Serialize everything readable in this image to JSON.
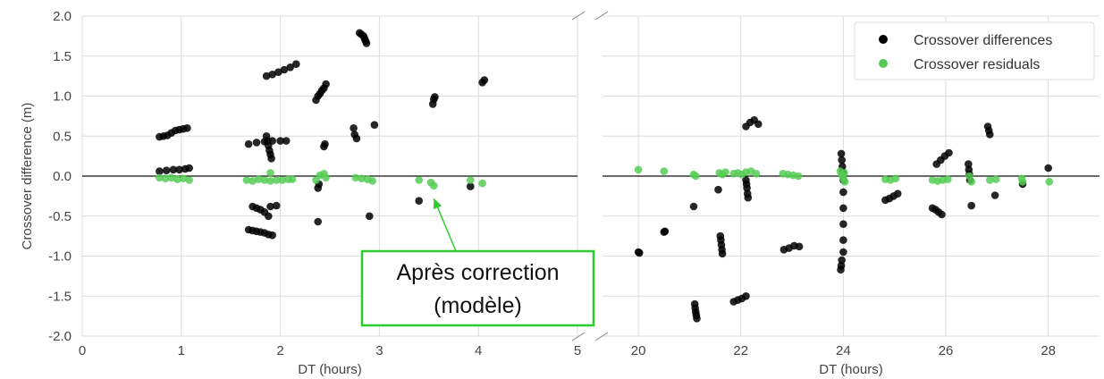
{
  "chart_data": [
    {
      "type": "scatter",
      "panel": "left",
      "xlabel": "DT (hours)",
      "ylabel": "Crossover difference (m)",
      "xlim": [
        0,
        5
      ],
      "ylim": [
        -2.0,
        2.0
      ],
      "xticks": [
        0,
        1,
        2,
        3,
        4,
        5
      ],
      "yticks": [
        "-2.0",
        "-1.5",
        "-1.0",
        "-0.5",
        "0.0",
        "0.5",
        "1.0",
        "1.5",
        "2.0"
      ],
      "grid": true,
      "zero_line": 0,
      "series": [
        {
          "name": "Crossover differences",
          "color": "#000000",
          "points": [
            [
              0.78,
              0.49
            ],
            [
              0.82,
              0.5
            ],
            [
              0.86,
              0.51
            ],
            [
              0.9,
              0.54
            ],
            [
              0.94,
              0.57
            ],
            [
              0.98,
              0.58
            ],
            [
              1.02,
              0.59
            ],
            [
              1.06,
              0.6
            ],
            [
              0.78,
              0.06
            ],
            [
              0.85,
              0.07
            ],
            [
              0.92,
              0.08
            ],
            [
              0.98,
              0.08
            ],
            [
              1.04,
              0.09
            ],
            [
              1.08,
              0.1
            ],
            [
              1.68,
              -0.67
            ],
            [
              1.72,
              -0.68
            ],
            [
              1.76,
              -0.69
            ],
            [
              1.8,
              -0.7
            ],
            [
              1.84,
              -0.71
            ],
            [
              1.88,
              -0.73
            ],
            [
              1.92,
              -0.74
            ],
            [
              1.72,
              -0.38
            ],
            [
              1.76,
              -0.4
            ],
            [
              1.8,
              -0.42
            ],
            [
              1.84,
              -0.45
            ],
            [
              1.88,
              -0.5
            ],
            [
              1.9,
              -0.38
            ],
            [
              1.96,
              -0.37
            ],
            [
              1.68,
              0.4
            ],
            [
              1.76,
              0.42
            ],
            [
              1.84,
              0.43
            ],
            [
              1.92,
              0.44
            ],
            [
              2.0,
              0.44
            ],
            [
              2.06,
              0.44
            ],
            [
              1.86,
              0.5
            ],
            [
              1.87,
              0.44
            ],
            [
              1.88,
              0.38
            ],
            [
              1.89,
              0.32
            ],
            [
              1.9,
              0.27
            ],
            [
              1.91,
              0.22
            ],
            [
              1.86,
              1.25
            ],
            [
              1.92,
              1.27
            ],
            [
              1.98,
              1.3
            ],
            [
              2.04,
              1.33
            ],
            [
              2.1,
              1.36
            ],
            [
              2.16,
              1.4
            ],
            [
              2.38,
              -0.15
            ],
            [
              2.39,
              -0.1
            ],
            [
              2.38,
              -0.57
            ],
            [
              2.36,
              0.95
            ],
            [
              2.38,
              1.0
            ],
            [
              2.4,
              1.03
            ],
            [
              2.42,
              1.07
            ],
            [
              2.44,
              1.1
            ],
            [
              2.46,
              1.15
            ],
            [
              2.44,
              0.37
            ],
            [
              2.45,
              0.4
            ],
            [
              2.74,
              0.6
            ],
            [
              2.75,
              0.52
            ],
            [
              2.77,
              0.47
            ],
            [
              2.8,
              1.79
            ],
            [
              2.82,
              1.77
            ],
            [
              2.84,
              1.75
            ],
            [
              2.85,
              1.72
            ],
            [
              2.86,
              1.69
            ],
            [
              2.87,
              1.66
            ],
            [
              2.9,
              -0.5
            ],
            [
              2.95,
              0.64
            ],
            [
              3.4,
              -0.31
            ],
            [
              3.54,
              0.9
            ],
            [
              3.55,
              0.96
            ],
            [
              3.56,
              0.99
            ],
            [
              3.92,
              -0.13
            ],
            [
              4.04,
              1.17
            ],
            [
              4.06,
              1.2
            ]
          ]
        },
        {
          "name": "Crossover residuals",
          "color": "#55cc55",
          "points": [
            [
              0.78,
              -0.02
            ],
            [
              0.84,
              -0.03
            ],
            [
              0.9,
              -0.02
            ],
            [
              0.96,
              -0.04
            ],
            [
              1.02,
              -0.03
            ],
            [
              1.08,
              -0.05
            ],
            [
              1.66,
              -0.05
            ],
            [
              1.72,
              -0.06
            ],
            [
              1.78,
              -0.04
            ],
            [
              1.84,
              -0.05
            ],
            [
              1.9,
              -0.06
            ],
            [
              1.96,
              -0.05
            ],
            [
              2.02,
              -0.05
            ],
            [
              2.08,
              -0.04
            ],
            [
              2.12,
              -0.04
            ],
            [
              1.9,
              0.04
            ],
            [
              2.36,
              -0.05
            ],
            [
              2.4,
              0.01
            ],
            [
              2.44,
              0.03
            ],
            [
              2.46,
              -0.02
            ],
            [
              2.76,
              -0.02
            ],
            [
              2.82,
              -0.03
            ],
            [
              2.88,
              -0.04
            ],
            [
              2.93,
              -0.06
            ],
            [
              3.4,
              -0.05
            ],
            [
              3.52,
              -0.08
            ],
            [
              3.55,
              -0.12
            ],
            [
              3.92,
              -0.05
            ],
            [
              4.04,
              -0.09
            ]
          ]
        }
      ]
    },
    {
      "type": "scatter",
      "panel": "right",
      "xlabel": "DT (hours)",
      "xlim": [
        19.3,
        29.0
      ],
      "ylim": [
        -2.0,
        2.0
      ],
      "xticks": [
        20,
        22,
        24,
        26,
        28
      ],
      "grid": true,
      "zero_line": 0,
      "legend": {
        "position": "top-right",
        "entries": [
          "Crossover differences",
          "Crossover residuals"
        ]
      },
      "series": [
        {
          "name": "Crossover differences",
          "color": "#000000",
          "points": [
            [
              20.0,
              -0.95
            ],
            [
              20.02,
              -0.96
            ],
            [
              20.5,
              -0.7
            ],
            [
              20.52,
              -0.69
            ],
            [
              21.08,
              -0.38
            ],
            [
              21.1,
              -1.6
            ],
            [
              21.11,
              -1.65
            ],
            [
              21.12,
              -1.7
            ],
            [
              21.13,
              -1.74
            ],
            [
              21.14,
              -1.78
            ],
            [
              21.56,
              -0.17
            ],
            [
              21.6,
              -0.75
            ],
            [
              21.61,
              -0.8
            ],
            [
              21.62,
              -0.86
            ],
            [
              21.63,
              -0.92
            ],
            [
              21.64,
              -0.97
            ],
            [
              21.86,
              -1.57
            ],
            [
              21.94,
              -1.55
            ],
            [
              22.02,
              -1.53
            ],
            [
              22.1,
              -1.5
            ],
            [
              22.1,
              0.62
            ],
            [
              22.18,
              0.67
            ],
            [
              22.26,
              0.7
            ],
            [
              22.34,
              0.65
            ],
            [
              22.1,
              -0.05
            ],
            [
              22.11,
              -0.1
            ],
            [
              22.12,
              -0.15
            ],
            [
              22.13,
              -0.22
            ],
            [
              22.14,
              -0.27
            ],
            [
              22.84,
              -0.92
            ],
            [
              22.94,
              -0.9
            ],
            [
              23.04,
              -0.87
            ],
            [
              23.14,
              -0.88
            ],
            [
              23.96,
              0.28
            ],
            [
              23.97,
              0.2
            ],
            [
              23.98,
              0.12
            ],
            [
              23.99,
              0.05
            ],
            [
              24.0,
              -0.05
            ],
            [
              24.0,
              -0.2
            ],
            [
              24.0,
              -0.4
            ],
            [
              24.0,
              -0.6
            ],
            [
              24.0,
              -0.8
            ],
            [
              24.0,
              -0.95
            ],
            [
              23.97,
              -1.05
            ],
            [
              23.96,
              -1.12
            ],
            [
              23.95,
              -1.17
            ],
            [
              24.82,
              -0.3
            ],
            [
              24.9,
              -0.28
            ],
            [
              24.98,
              -0.25
            ],
            [
              25.06,
              -0.22
            ],
            [
              25.74,
              -0.4
            ],
            [
              25.8,
              -0.42
            ],
            [
              25.86,
              -0.45
            ],
            [
              25.92,
              -0.48
            ],
            [
              25.82,
              0.15
            ],
            [
              25.9,
              0.2
            ],
            [
              25.98,
              0.25
            ],
            [
              26.06,
              0.29
            ],
            [
              26.44,
              0.15
            ],
            [
              26.45,
              0.08
            ],
            [
              26.46,
              0.02
            ],
            [
              26.47,
              -0.05
            ],
            [
              26.5,
              -0.37
            ],
            [
              26.82,
              0.62
            ],
            [
              26.84,
              0.57
            ],
            [
              26.86,
              0.52
            ],
            [
              26.96,
              -0.24
            ],
            [
              27.5,
              -0.1
            ],
            [
              28.0,
              0.1
            ]
          ]
        },
        {
          "name": "Crossover residuals",
          "color": "#55cc55",
          "points": [
            [
              20.0,
              0.08
            ],
            [
              20.5,
              0.06
            ],
            [
              21.08,
              0.02
            ],
            [
              21.12,
              0.0
            ],
            [
              21.58,
              0.04
            ],
            [
              21.64,
              0.02
            ],
            [
              21.7,
              0.05
            ],
            [
              21.86,
              0.03
            ],
            [
              21.94,
              0.04
            ],
            [
              22.02,
              0.02
            ],
            [
              22.1,
              0.05
            ],
            [
              22.2,
              0.06
            ],
            [
              22.3,
              0.03
            ],
            [
              22.82,
              0.03
            ],
            [
              22.92,
              0.02
            ],
            [
              23.02,
              0.01
            ],
            [
              23.12,
              0.0
            ],
            [
              23.94,
              0.06
            ],
            [
              23.97,
              0.01
            ],
            [
              24.0,
              -0.03
            ],
            [
              24.03,
              -0.07
            ],
            [
              24.02,
              0.04
            ],
            [
              24.82,
              -0.04
            ],
            [
              24.92,
              -0.05
            ],
            [
              25.02,
              -0.03
            ],
            [
              25.74,
              -0.05
            ],
            [
              25.84,
              -0.06
            ],
            [
              25.94,
              -0.05
            ],
            [
              26.04,
              -0.04
            ],
            [
              26.46,
              0.0
            ],
            [
              26.5,
              -0.07
            ],
            [
              26.86,
              -0.05
            ],
            [
              26.98,
              -0.04
            ],
            [
              27.48,
              -0.03
            ],
            [
              27.5,
              -0.07
            ],
            [
              28.02,
              -0.07
            ]
          ]
        }
      ]
    }
  ],
  "annotation": {
    "line1": "Après correction",
    "line2": "(modèle)",
    "box_color": "#2ecc2e",
    "arrow_target": {
      "panel": "left",
      "x": 3.55,
      "y": -0.28
    }
  }
}
